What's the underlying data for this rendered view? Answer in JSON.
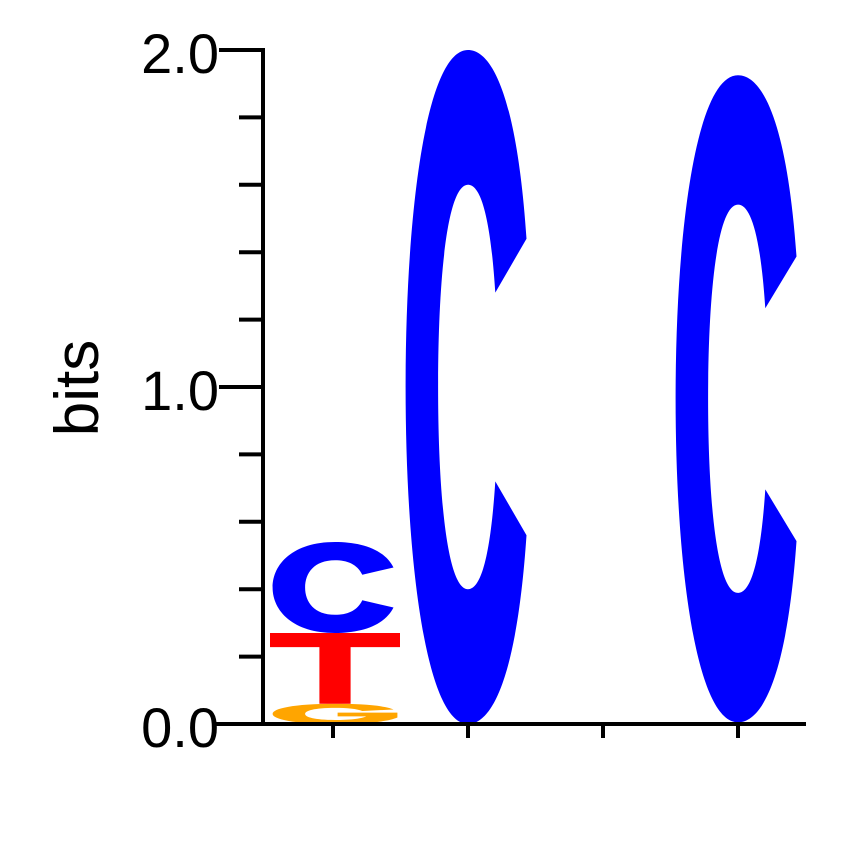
{
  "chart_data": {
    "type": "sequence-logo",
    "ylabel": "bits",
    "ylim": [
      0,
      2
    ],
    "yticks": [
      {
        "value": 0,
        "label": "0.0"
      },
      {
        "value": 1,
        "label": "1.0"
      },
      {
        "value": 2,
        "label": "2.0"
      }
    ],
    "y_minor_step": 0.2,
    "x_tick_count": 4,
    "colors": {
      "A": "#00a000",
      "C": "#0000ff",
      "G": "#ffa500",
      "T": "#ff0000"
    },
    "positions": [
      {
        "letters": [
          {
            "base": "G",
            "bits": 0.06
          },
          {
            "base": "T",
            "bits": 0.21
          },
          {
            "base": "C",
            "bits": 0.27
          }
        ]
      },
      {
        "letters": [
          {
            "base": "C",
            "bits": 2.0
          }
        ]
      },
      {
        "letters": [
          {
            "base": "G",
            "bits": 0.005
          },
          {
            "base": "C",
            "bits": 1.92
          }
        ]
      }
    ]
  }
}
